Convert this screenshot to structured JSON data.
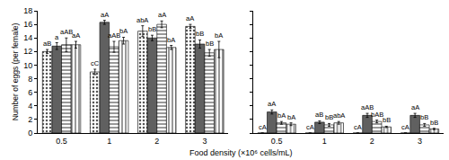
{
  "chart_data": [
    {
      "type": "bar",
      "categories": [
        "0.5",
        "1",
        "2",
        "3"
      ],
      "xlabel": "Food density (×10⁶ cells/mL)",
      "ylabel": "Number of eggs (per female)",
      "ylim": [
        0,
        18
      ],
      "yticks": [
        0,
        2,
        4,
        6,
        8,
        10,
        12,
        14,
        16,
        18
      ],
      "series": [
        {
          "color": "#ffffff",
          "marker": "dots",
          "values": [
            12.0,
            9.0,
            15.0,
            15.7
          ],
          "errors": [
            0.3,
            0.4,
            0.8,
            0.3
          ],
          "labels": [
            "aB",
            "cC",
            "abA",
            "aA"
          ]
        },
        {
          "color": "#606060",
          "marker": "solid",
          "values": [
            12.8,
            16.3,
            14.0,
            13.1
          ],
          "errors": [
            0.5,
            0.3,
            0.4,
            0.6
          ],
          "labels": [
            "a",
            "aA",
            "bB",
            "bB"
          ]
        },
        {
          "color": "#ffffff",
          "marker": "hlines",
          "values": [
            13.0,
            12.7,
            16.0,
            11.8
          ],
          "errors": [
            1.0,
            0.8,
            0.5,
            0.5
          ],
          "labels": [
            "aAB",
            "aAB",
            "aA",
            "bB"
          ]
        },
        {
          "color": "#ffffff",
          "marker": "vlines",
          "values": [
            13.0,
            13.6,
            12.6,
            12.3
          ],
          "errors": [
            0.5,
            0.5,
            0.3,
            1.2
          ],
          "labels": [
            "aA",
            "bA",
            "bA",
            "bA"
          ]
        }
      ]
    },
    {
      "type": "bar",
      "categories": [
        "0.5",
        "1",
        "2",
        "3"
      ],
      "ylim": [
        0,
        18
      ],
      "yticks": [
        0,
        2,
        4,
        6,
        8,
        10,
        12,
        14,
        16,
        18
      ],
      "tick_labels": "x",
      "series": [
        {
          "color": "#ffffff",
          "marker": "dots",
          "values": [
            0,
            0,
            0,
            0
          ],
          "errors": [
            0,
            0,
            0,
            0
          ],
          "labels": [
            "cA",
            "cA",
            "cA",
            "cA"
          ]
        },
        {
          "color": "#606060",
          "marker": "solid",
          "values": [
            3.1,
            1.6,
            2.6,
            2.6
          ],
          "errors": [
            0.3,
            0.2,
            0.3,
            0.3
          ],
          "labels": [
            "aA",
            "aB",
            "aAB",
            "aA"
          ]
        },
        {
          "color": "#ffffff",
          "marker": "hlines",
          "values": [
            1.5,
            1.2,
            1.7,
            1.2
          ],
          "errors": [
            0.2,
            0.2,
            0.2,
            0.2
          ],
          "labels": [
            "bA",
            "bB",
            "bAB",
            "bB"
          ]
        },
        {
          "color": "#ffffff",
          "marker": "vlines",
          "values": [
            1.3,
            1.5,
            0.9,
            0.6
          ],
          "errors": [
            0.2,
            0.2,
            0.1,
            0.1
          ],
          "labels": [
            "bA",
            "abA",
            "bB",
            "bB"
          ]
        }
      ]
    }
  ]
}
